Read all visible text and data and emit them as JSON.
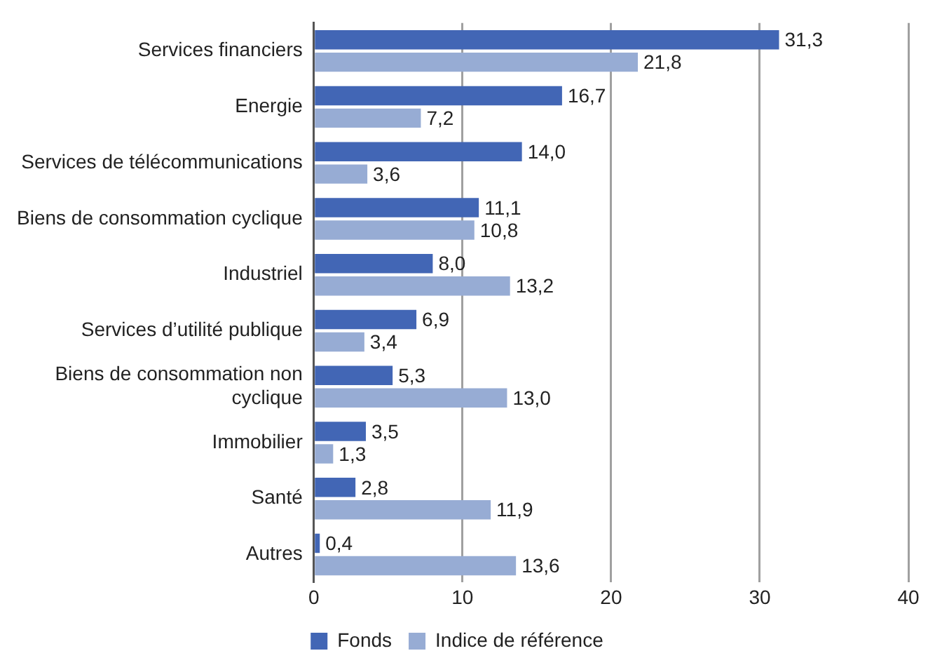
{
  "chart_data": {
    "type": "bar",
    "orientation": "horizontal",
    "categories": [
      "Services financiers",
      "Energie",
      "Services de télécommunications",
      "Biens de consommation cyclique",
      "Industriel",
      "Services d’utilité publique",
      "Biens de consommation non cyclique",
      "Immobilier",
      "Santé",
      "Autres"
    ],
    "series": [
      {
        "name": "Fonds",
        "color": "#4266b5",
        "values": [
          31.3,
          16.7,
          14.0,
          11.1,
          8.0,
          6.9,
          5.3,
          3.5,
          2.8,
          0.4
        ],
        "value_labels": [
          "31,3",
          "16,7",
          "14,0",
          "11,1",
          "8,0",
          "6,9",
          "5,3",
          "3,5",
          "2,8",
          "0,4"
        ]
      },
      {
        "name": "Indice de référence",
        "color": "#97acd4",
        "values": [
          21.8,
          7.2,
          3.6,
          10.8,
          13.2,
          3.4,
          13.0,
          1.3,
          11.9,
          13.6
        ],
        "value_labels": [
          "21,8",
          "7,2",
          "3,6",
          "10,8",
          "13,2",
          "3,4",
          "13,0",
          "1,3",
          "11,9",
          "13,6"
        ]
      }
    ],
    "xlim": [
      0,
      40
    ],
    "xticks": [
      0,
      10,
      20,
      30,
      40
    ],
    "grid": "x",
    "legend": "bottom"
  }
}
